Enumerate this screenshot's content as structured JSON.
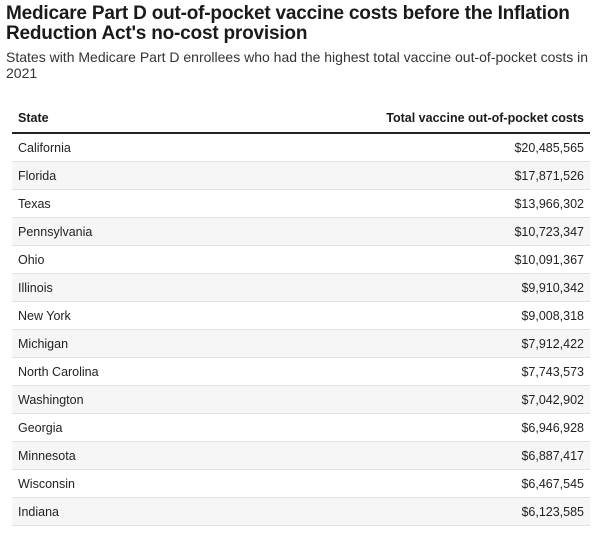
{
  "title": "Medicare Part D out-of-pocket vaccine costs before the Inflation Reduction Act's no-cost provision",
  "subtitle": "States with Medicare Part D enrollees who had the highest total vaccine out-of-pocket costs in 2021",
  "chart_data": {
    "type": "table",
    "columns": [
      "State",
      "Total vaccine out-of-pocket costs"
    ],
    "rows": [
      [
        "California",
        "$20,485,565"
      ],
      [
        "Florida",
        "$17,871,526"
      ],
      [
        "Texas",
        "$13,966,302"
      ],
      [
        "Pennsylvania",
        "$10,723,347"
      ],
      [
        "Ohio",
        "$10,091,367"
      ],
      [
        "Illinois",
        "$9,910,342"
      ],
      [
        "New York",
        "$9,008,318"
      ],
      [
        "Michigan",
        "$7,912,422"
      ],
      [
        "North Carolina",
        "$7,743,573"
      ],
      [
        "Washington",
        "$7,042,902"
      ],
      [
        "Georgia",
        "$6,946,928"
      ],
      [
        "Minnesota",
        "$6,887,417"
      ],
      [
        "Wisconsin",
        "$6,467,545"
      ],
      [
        "Indiana",
        "$6,123,585"
      ]
    ]
  }
}
